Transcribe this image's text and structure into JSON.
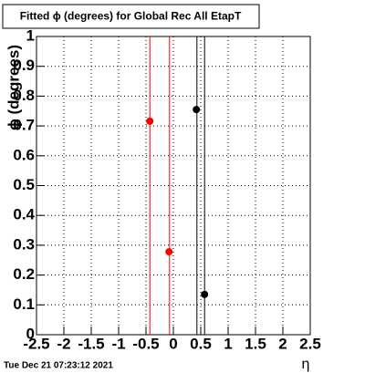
{
  "chart_data": {
    "type": "scatter",
    "title": "Fitted ϕ (degrees) for Global Rec All EtapT",
    "y_label": "ϕ (degrees)",
    "x_label": "η",
    "footer": "Tue Dec 21 07:23:12 2021",
    "xlim": [
      -2.5,
      2.5
    ],
    "ylim": [
      0,
      1
    ],
    "xticks": [
      -2.5,
      -2,
      -1.5,
      -1,
      -0.5,
      0,
      0.5,
      1,
      1.5,
      2,
      2.5
    ],
    "yticks": [
      0,
      0.1,
      0.2,
      0.3,
      0.4,
      0.5,
      0.6,
      0.7,
      0.8,
      0.9,
      1
    ],
    "grid": true,
    "series": [
      {
        "color": "#ff0000",
        "x": [
          -0.43,
          -0.08
        ],
        "values": [
          0.716,
          0.278
        ]
      },
      {
        "color": "#000000",
        "x": [
          0.42,
          0.57
        ],
        "values": [
          0.755,
          0.135
        ]
      }
    ],
    "vlines": [
      {
        "x": -0.43,
        "color": "#ff0000"
      },
      {
        "x": -0.07,
        "color": "#ff0000"
      },
      {
        "x": 0.43,
        "color": "#000000"
      },
      {
        "x": 0.57,
        "color": "#000000"
      }
    ]
  }
}
